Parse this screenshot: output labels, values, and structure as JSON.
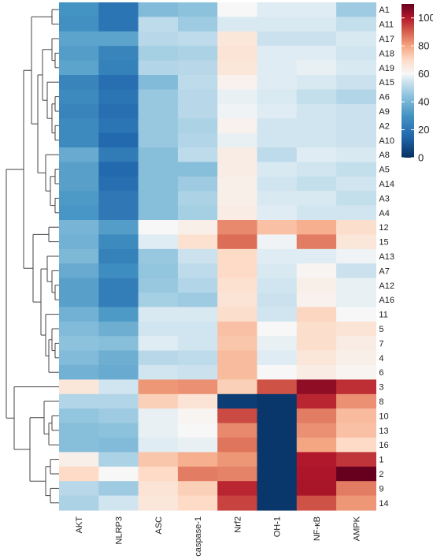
{
  "chart_data": {
    "type": "heatmap",
    "columns": [
      "AKT",
      "NLRP3",
      "ASC",
      "caspase-1",
      "Nrf2",
      "OH-1",
      "NF-κB",
      "AMPK"
    ],
    "rows": [
      "A1",
      "A11",
      "A17",
      "A18",
      "A19",
      "A15",
      "A6",
      "A9",
      "A2",
      "A10",
      "A8",
      "A5",
      "A14",
      "A3",
      "A4",
      "12",
      "15",
      "A13",
      "A7",
      "A12",
      "A16",
      "11",
      "5",
      "7",
      "4",
      "6",
      "3",
      "8",
      "10",
      "13",
      "16",
      "1",
      "2",
      "9",
      "14"
    ],
    "values": [
      [
        30,
        20,
        42,
        44,
        60,
        57,
        57,
        47
      ],
      [
        29,
        20,
        52,
        47,
        56,
        56,
        56,
        53
      ],
      [
        35,
        35,
        51,
        52,
        66,
        54,
        54,
        56
      ],
      [
        33,
        25,
        48,
        49,
        67,
        57,
        57,
        55
      ],
      [
        35,
        24,
        50,
        51,
        66,
        57,
        58,
        56
      ],
      [
        25,
        18,
        42,
        52,
        62,
        57,
        56,
        54
      ],
      [
        27,
        20,
        46,
        51,
        58,
        56,
        53,
        50
      ],
      [
        25,
        18,
        46,
        51,
        59,
        57,
        55,
        54
      ],
      [
        27,
        20,
        46,
        49,
        62,
        55,
        55,
        54
      ],
      [
        27,
        16,
        46,
        50,
        58,
        55,
        55,
        54
      ],
      [
        37,
        22,
        43,
        52,
        64,
        52,
        57,
        56
      ],
      [
        34,
        16,
        43,
        43,
        64,
        56,
        55,
        53
      ],
      [
        34,
        18,
        43,
        47,
        63,
        55,
        53,
        55
      ],
      [
        32,
        21,
        43,
        49,
        63,
        56,
        56,
        53
      ],
      [
        31,
        21,
        43,
        48,
        64,
        57,
        55,
        55
      ],
      [
        40,
        33,
        60,
        63,
        84,
        75,
        78,
        69
      ],
      [
        39,
        27,
        57,
        68,
        88,
        59,
        86,
        66
      ],
      [
        41,
        24,
        46,
        54,
        70,
        57,
        57,
        59
      ],
      [
        37,
        28,
        45,
        52,
        70,
        56,
        61,
        54
      ],
      [
        34,
        23,
        46,
        50,
        68,
        55,
        63,
        58
      ],
      [
        34,
        23,
        48,
        47,
        67,
        54,
        62,
        58
      ],
      [
        39,
        32,
        56,
        56,
        69,
        55,
        71,
        60
      ],
      [
        42,
        38,
        55,
        55,
        75,
        60,
        69,
        67
      ],
      [
        44,
        43,
        57,
        55,
        74,
        58,
        69,
        64
      ],
      [
        42,
        38,
        51,
        52,
        76,
        57,
        66,
        63
      ],
      [
        39,
        37,
        55,
        54,
        76,
        60,
        64,
        61
      ],
      [
        66,
        55,
        82,
        83,
        72,
        92,
        107,
        97
      ],
      [
        50,
        50,
        72,
        67,
        4,
        2,
        98,
        83
      ],
      [
        45,
        47,
        58,
        61,
        93,
        2,
        86,
        76
      ],
      [
        43,
        44,
        58,
        60,
        84,
        2,
        83,
        75
      ],
      [
        43,
        42,
        57,
        58,
        87,
        2,
        80,
        70
      ],
      [
        63,
        49,
        74,
        78,
        82,
        2,
        100,
        96
      ],
      [
        70,
        60,
        70,
        86,
        85,
        2,
        101,
        115
      ],
      [
        51,
        47,
        67,
        72,
        98,
        2,
        102,
        86
      ],
      [
        49,
        55,
        66,
        70,
        94,
        2,
        92,
        82
      ]
    ],
    "color_scale": {
      "range": [
        0,
        110
      ],
      "ticks": [
        0,
        20,
        40,
        60,
        80,
        100
      ],
      "stops": [
        {
          "value": 0,
          "color": "#053061"
        },
        {
          "value": 15,
          "color": "#2166ac"
        },
        {
          "value": 30,
          "color": "#4393c3"
        },
        {
          "value": 45,
          "color": "#92c5de"
        },
        {
          "value": 55,
          "color": "#d1e5f0"
        },
        {
          "value": 60,
          "color": "#f7f7f7"
        },
        {
          "value": 70,
          "color": "#fddbc7"
        },
        {
          "value": 80,
          "color": "#f4a582"
        },
        {
          "value": 90,
          "color": "#d6604d"
        },
        {
          "value": 100,
          "color": "#b2182b"
        },
        {
          "value": 115,
          "color": "#67001f"
        }
      ]
    },
    "row_dendrogram": true,
    "legend": "right"
  }
}
